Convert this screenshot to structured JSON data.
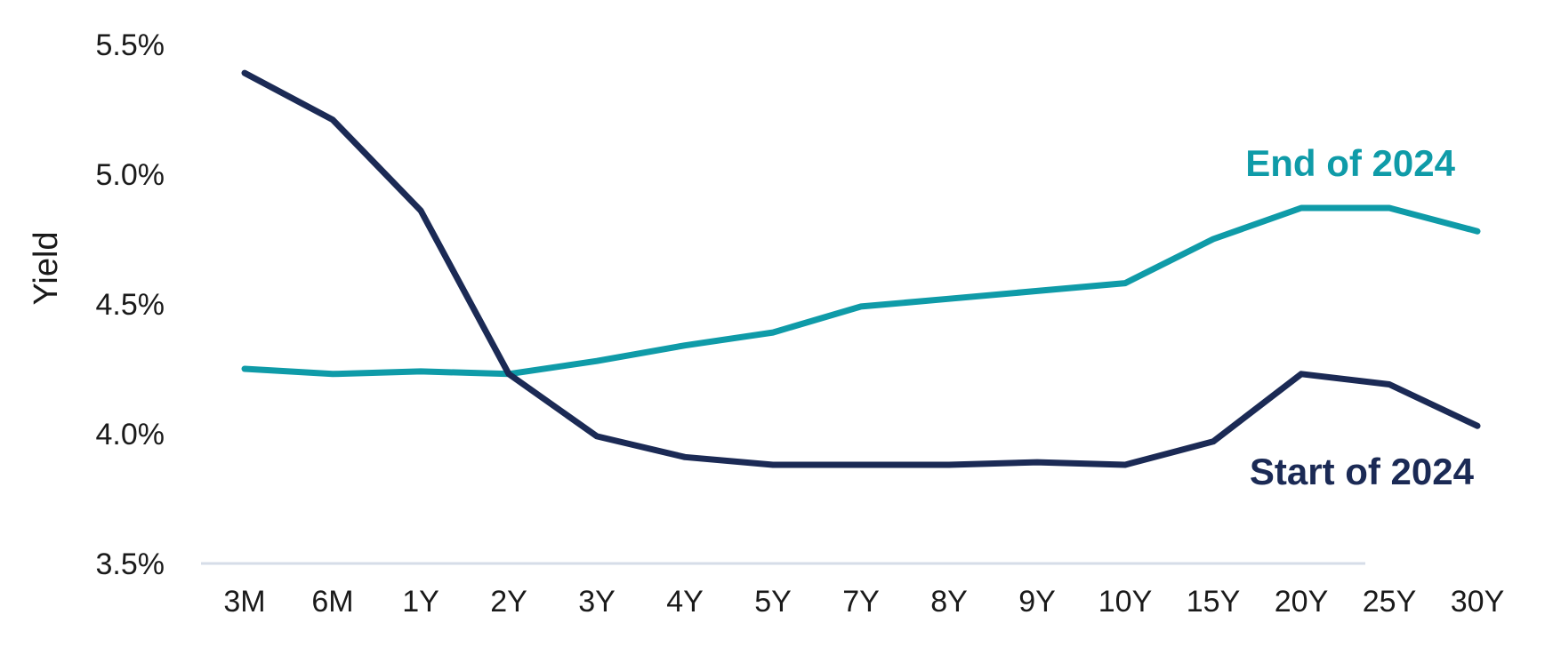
{
  "chart_data": {
    "type": "line",
    "title": "",
    "xlabel": "",
    "ylabel": "Yield",
    "categories": [
      "3M",
      "6M",
      "1Y",
      "2Y",
      "3Y",
      "4Y",
      "5Y",
      "7Y",
      "8Y",
      "9Y",
      "10Y",
      "15Y",
      "20Y",
      "25Y",
      "30Y"
    ],
    "ylim": [
      3.5,
      5.5
    ],
    "yticks": [
      "5.5%",
      "5.0%",
      "4.5%",
      "4.0%",
      "3.5%"
    ],
    "ytick_values": [
      5.5,
      5.0,
      4.5,
      4.0,
      3.5
    ],
    "grid": false,
    "legend": "inline labels",
    "series": [
      {
        "name": "End of 2024",
        "color": "#0f9ba8",
        "values": [
          4.25,
          4.23,
          4.24,
          4.23,
          4.28,
          4.34,
          4.39,
          4.49,
          4.52,
          4.55,
          4.58,
          4.75,
          4.87,
          4.87,
          4.78
        ]
      },
      {
        "name": "Start of 2024",
        "color": "#1b2a55",
        "values": [
          5.39,
          5.21,
          4.86,
          4.23,
          3.99,
          3.91,
          3.88,
          3.88,
          3.88,
          3.89,
          3.88,
          3.97,
          4.23,
          4.19,
          4.03
        ]
      }
    ],
    "axis_color": "#d6dde8"
  }
}
